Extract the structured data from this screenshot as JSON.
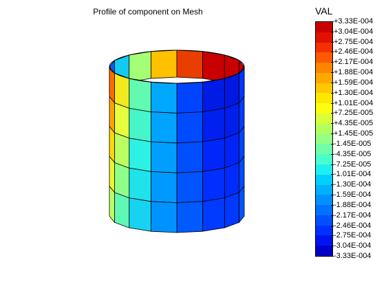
{
  "title": "Profile of component on Mesh",
  "legend": {
    "title": "VAL",
    "ticks": [
      "+3.33E-004",
      "+3.04E-004",
      "+2.75E-004",
      "+2.46E-004",
      "+2.17E-004",
      "+1.88E-004",
      "+1.59E-004",
      "+1.30E-004",
      "+1.01E-004",
      "+7.25E-005",
      "+4.35E-005",
      "+1.45E-005",
      "-1.45E-005",
      "-4.35E-005",
      "-7.25E-005",
      "-1.01E-004",
      "-1.30E-004",
      "-1.59E-004",
      "-1.88E-004",
      "-2.17E-004",
      "-2.46E-004",
      "-2.75E-004",
      "-3.04E-004",
      "-3.33E-004"
    ],
    "colors": [
      "#c80000",
      "#e11100",
      "#f53000",
      "#ff5a00",
      "#ff8400",
      "#ffa800",
      "#ffc800",
      "#ffe600",
      "#fcff10",
      "#d8ff3a",
      "#b4ff60",
      "#94ff84",
      "#70ffa8",
      "#48ffcc",
      "#1ef0f0",
      "#00d0ff",
      "#00b0ff",
      "#0090ff",
      "#0070ff",
      "#0050ff",
      "#0030ff",
      "#0014f0",
      "#0000c8"
    ]
  }
}
